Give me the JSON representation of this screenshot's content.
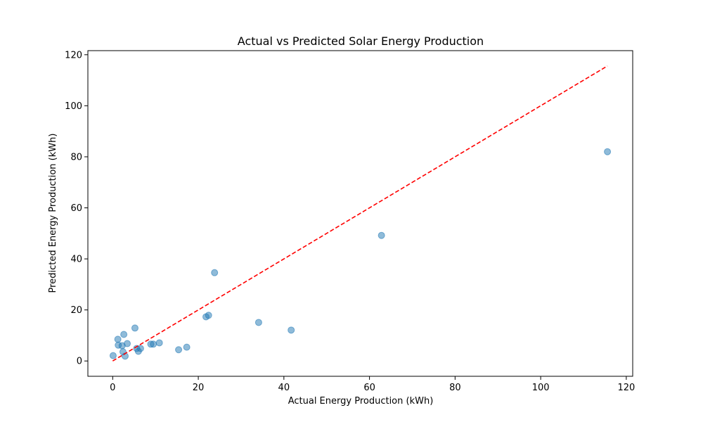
{
  "chart_data": {
    "type": "scatter",
    "title": "Actual vs Predicted Solar Energy Production",
    "xlabel": "Actual Energy Production (kWh)",
    "ylabel": "Predicted Energy Production (kWh)",
    "xlim": [
      -5.8,
      121.5
    ],
    "ylim": [
      -6.0,
      121.6
    ],
    "xticks": [
      0,
      20,
      40,
      60,
      80,
      100,
      120
    ],
    "yticks": [
      0,
      20,
      40,
      60,
      80,
      100,
      120
    ],
    "grid": false,
    "point_color": "#1f77b4",
    "line_color": "#ff0000",
    "reference_line": {
      "x": [
        0,
        115.6
      ],
      "y": [
        0,
        115.6
      ],
      "style": "dashed"
    },
    "points": [
      {
        "x": 0.1,
        "y": 2.1
      },
      {
        "x": 1.2,
        "y": 8.5
      },
      {
        "x": 1.3,
        "y": 6.2
      },
      {
        "x": 2.2,
        "y": 6.0
      },
      {
        "x": 2.4,
        "y": 3.6
      },
      {
        "x": 2.6,
        "y": 10.4
      },
      {
        "x": 2.9,
        "y": 1.9
      },
      {
        "x": 3.4,
        "y": 6.8
      },
      {
        "x": 5.2,
        "y": 12.9
      },
      {
        "x": 5.6,
        "y": 4.9
      },
      {
        "x": 6.0,
        "y": 3.8
      },
      {
        "x": 6.5,
        "y": 4.9
      },
      {
        "x": 8.9,
        "y": 6.6
      },
      {
        "x": 9.5,
        "y": 6.6
      },
      {
        "x": 10.9,
        "y": 7.1
      },
      {
        "x": 15.4,
        "y": 4.4
      },
      {
        "x": 17.3,
        "y": 5.4
      },
      {
        "x": 21.8,
        "y": 17.3
      },
      {
        "x": 22.4,
        "y": 17.9
      },
      {
        "x": 23.8,
        "y": 34.6
      },
      {
        "x": 34.1,
        "y": 15.1
      },
      {
        "x": 41.7,
        "y": 12.1
      },
      {
        "x": 62.8,
        "y": 49.2
      },
      {
        "x": 115.6,
        "y": 82.0
      }
    ]
  }
}
